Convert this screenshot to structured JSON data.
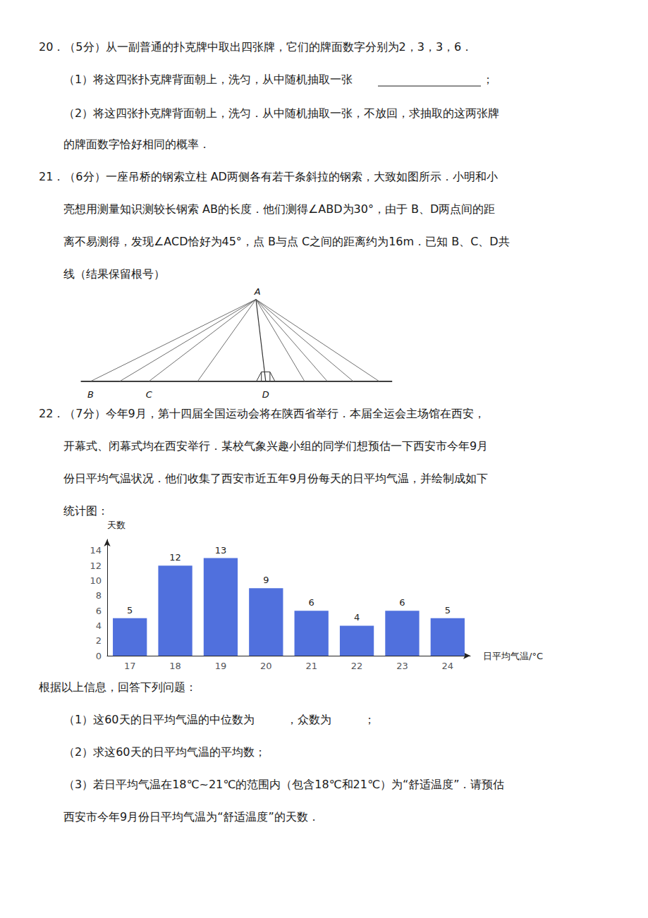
{
  "chart_data": {
    "type": "bar",
    "categories": [
      17,
      18,
      19,
      20,
      21,
      22,
      23,
      24
    ],
    "values": [
      5,
      12,
      13,
      9,
      6,
      4,
      6,
      5
    ],
    "xlabel": "日平均气温/°C",
    "ylabel": "天数",
    "ylim": [
      0,
      15.5
    ],
    "yticks": [
      0,
      2,
      4,
      6,
      8,
      10,
      12,
      14
    ],
    "grid": false,
    "data_labels": true,
    "annotations": [
      "20．（5分）从一副普通的扑克牌中取出四张牌，它们的牌面数字分别为2，3，3，6．",
      "（1）将这四张扑克牌背面朝上，洗匀，从中随机抽取一张",
      "；",
      "（2）将这四张扑克牌背面朝上，洗匀．从中随机抽取一张，不放回，求抽取的这两张牌",
      "的牌面数字恰好相同的概率．",
      "21．（6分）一座吊桥的钢索立柱 AD两侧各有若干条斜拉的钢索，大致如图所示．小明和小",
      "亮想用测量知识测较长钢索 AB的长度．他们测得∠ABD为30°，由于 B、D两点间的距",
      "离不易测得，发现∠ACD恰好为45°，点 B与点 C之间的距离约为16m．已知 B、C、D共",
      "线（结果保留根号）",
      "B",
      "C",
      "D",
      "A",
      "22．（7分）今年9月，第十四届全国运动会将在陕西省举行．本届全运会主场馆在西安，",
      "开幕式、闭幕式均在西安举行．某校气象兴趣小组的同学们想预估一下西安市今年9月",
      "份日平均气温状况．他们收集了西安市近五年9月份每天的日平均气温，并绘制成如下",
      "统计图：",
      "根据以上信息，回答下列问题：",
      "（1）这60天的日平均气温的中位数为         ，众数为         ；",
      "（2）求这60天的日平均气温的平均数；",
      "（3）若日平均气温在18℃~21℃的范围内（包含18℃和21℃）为“舒适温度”．请预估",
      "西安市今年9月份日平均气温为“舒适温度”的天数．"
    ]
  }
}
